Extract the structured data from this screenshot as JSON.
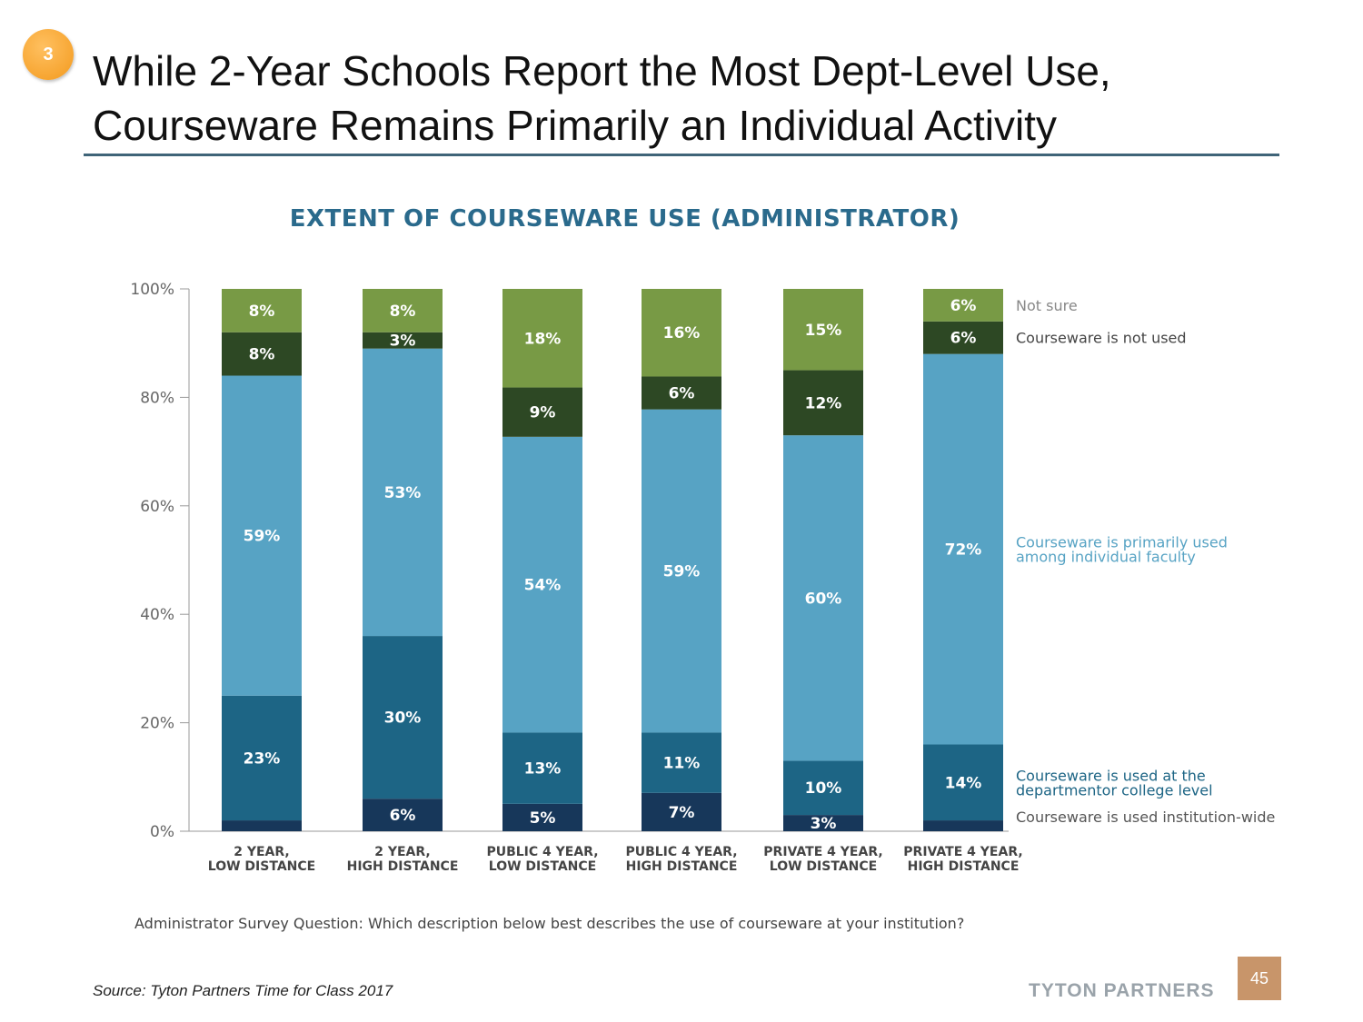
{
  "slide": {
    "badge": "3",
    "title_line1": "While 2-Year Schools Report the Most Dept-Level Use,",
    "title_line2": "Courseware Remains Primarily an Individual Activity",
    "question": "Administrator Survey Question: Which description below best describes the use of courseware at your institution?",
    "source": "Source: Tyton Partners Time for Class 2017",
    "logo": "TYTON PARTNERS",
    "page_number": "45"
  },
  "chart_data": {
    "type": "bar",
    "stacked": true,
    "title": "EXTENT OF COURSEWARE USE (ADMINISTRATOR)",
    "categories": [
      [
        "2 YEAR,",
        "LOW DISTANCE"
      ],
      [
        "2 YEAR,",
        "HIGH DISTANCE"
      ],
      [
        "PUBLIC 4 YEAR,",
        "LOW DISTANCE"
      ],
      [
        "PUBLIC 4 YEAR,",
        "HIGH DISTANCE"
      ],
      [
        "PRIVATE 4 YEAR,",
        "LOW DISTANCE"
      ],
      [
        "PRIVATE 4 YEAR,",
        "HIGH DISTANCE"
      ]
    ],
    "yticks": [
      "0%",
      "20%",
      "40%",
      "60%",
      "80%",
      "100%"
    ],
    "ylim": [
      0,
      100
    ],
    "grid": false,
    "legend_placement": "right",
    "series": [
      {
        "name": "Courseware is used institution-wide",
        "color": "#17375a",
        "text_color": "#555555",
        "values": [
          2,
          6,
          5,
          7,
          3,
          2
        ],
        "labels": [
          null,
          "6%",
          "5%",
          "7%",
          "3%",
          null
        ]
      },
      {
        "name": "Courseware is used at the departmentor college level",
        "name_lines": [
          "Courseware is used at the",
          "departmentor college level"
        ],
        "color": "#1d6585",
        "text_color": "#1d6585",
        "values": [
          23,
          30,
          13,
          11,
          10,
          14
        ],
        "labels": [
          "23%",
          "30%",
          "13%",
          "11%",
          "10%",
          "14%"
        ]
      },
      {
        "name": "Courseware is primarily used among individual faculty",
        "name_lines": [
          "Courseware is primarily used",
          "among individual faculty"
        ],
        "color": "#57a3c4",
        "text_color": "#57a3c4",
        "values": [
          59,
          53,
          54,
          59,
          60,
          72
        ],
        "labels": [
          "59%",
          "53%",
          "54%",
          "59%",
          "60%",
          "72%"
        ]
      },
      {
        "name": "Courseware is not used",
        "color": "#2d4824",
        "text_color": "#444444",
        "values": [
          8,
          3,
          9,
          6,
          12,
          6
        ],
        "labels": [
          "8%",
          "3%",
          "9%",
          "6%",
          "12%",
          "6%"
        ]
      },
      {
        "name": "Not sure",
        "color": "#789a45",
        "text_color": "#888888",
        "values": [
          8,
          8,
          18,
          16,
          15,
          6
        ],
        "labels": [
          "8%",
          "8%",
          "18%",
          "16%",
          "15%",
          "6%"
        ]
      }
    ]
  }
}
